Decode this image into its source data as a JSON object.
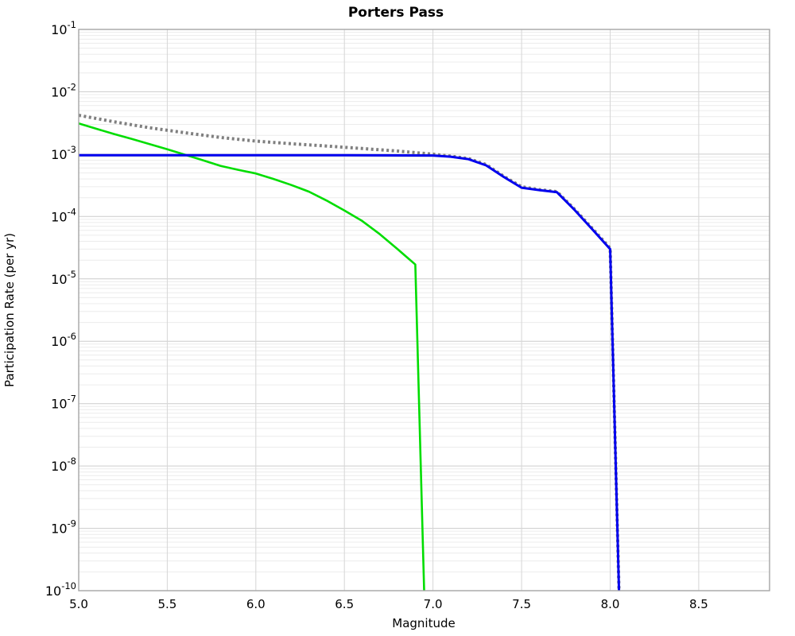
{
  "chart_data": {
    "type": "line",
    "title": "Porters Pass",
    "xlabel": "Magnitude",
    "ylabel": "Participation Rate (per yr)",
    "xlim": [
      5.0,
      8.9
    ],
    "y_scale": "log",
    "ylim_exp": [
      -10,
      -1
    ],
    "x_ticks": [
      5.0,
      5.5,
      6.0,
      6.5,
      7.0,
      7.5,
      8.0,
      8.5
    ],
    "x_tick_labels": [
      "5.0",
      "5.5",
      "6.0",
      "6.5",
      "7.0",
      "7.5",
      "8.0",
      "8.5"
    ],
    "y_tick_exponents": [
      -1,
      -2,
      -3,
      -4,
      -5,
      -6,
      -7,
      -8,
      -9,
      -10
    ],
    "grid": "major and log-minor horizontal, major vertical",
    "legend": "none",
    "background_color": "#ffffff",
    "series": [
      {
        "name": "green-curve",
        "color": "#00dd00",
        "style": "solid",
        "width": 2.6,
        "points": [
          [
            5.0,
            0.0031
          ],
          [
            5.1,
            0.00255
          ],
          [
            5.2,
            0.0021
          ],
          [
            5.3,
            0.00175
          ],
          [
            5.4,
            0.00145
          ],
          [
            5.5,
            0.0012
          ],
          [
            5.6,
            0.00098
          ],
          [
            5.7,
            0.0008
          ],
          [
            5.8,
            0.00065
          ],
          [
            5.9,
            0.00056
          ],
          [
            6.0,
            0.00049
          ],
          [
            6.1,
            0.0004
          ],
          [
            6.2,
            0.00032
          ],
          [
            6.3,
            0.00025
          ],
          [
            6.4,
            0.00018
          ],
          [
            6.5,
            0.000125
          ],
          [
            6.6,
            8.5e-05
          ],
          [
            6.7,
            5.2e-05
          ],
          [
            6.8,
            3e-05
          ],
          [
            6.9,
            1.7e-05
          ],
          [
            6.95,
            1e-10
          ]
        ]
      },
      {
        "name": "gray-dotted-total-curve",
        "color": "#7f7f7f",
        "style": "dotted",
        "width": 4,
        "points": [
          [
            5.0,
            0.0042
          ],
          [
            5.2,
            0.0033
          ],
          [
            5.4,
            0.00265
          ],
          [
            5.6,
            0.0022
          ],
          [
            5.8,
            0.00185
          ],
          [
            6.0,
            0.00162
          ],
          [
            6.2,
            0.00147
          ],
          [
            6.4,
            0.00135
          ],
          [
            6.6,
            0.00123
          ],
          [
            6.8,
            0.00112
          ],
          [
            7.0,
            0.001
          ],
          [
            7.1,
            0.00093
          ],
          [
            7.2,
            0.00085
          ],
          [
            7.3,
            0.00068
          ],
          [
            7.4,
            0.00044
          ],
          [
            7.5,
            0.0003
          ],
          [
            7.6,
            0.00027
          ],
          [
            7.7,
            0.00025
          ],
          [
            7.8,
            0.00013
          ],
          [
            7.9,
            6.4e-05
          ],
          [
            8.0,
            3.1e-05
          ],
          [
            8.05,
            1e-10
          ]
        ]
      },
      {
        "name": "blue-curve",
        "color": "#0000ee",
        "style": "solid",
        "width": 3,
        "points": [
          [
            5.0,
            0.00096
          ],
          [
            6.0,
            0.00096
          ],
          [
            6.5,
            0.00096
          ],
          [
            7.0,
            0.00095
          ],
          [
            7.1,
            0.00091
          ],
          [
            7.2,
            0.00083
          ],
          [
            7.3,
            0.00066
          ],
          [
            7.4,
            0.00043
          ],
          [
            7.5,
            0.00029
          ],
          [
            7.6,
            0.000265
          ],
          [
            7.7,
            0.000245
          ],
          [
            7.8,
            0.000127
          ],
          [
            7.9,
            6.2e-05
          ],
          [
            8.0,
            3e-05
          ],
          [
            8.05,
            1e-10
          ]
        ]
      }
    ]
  }
}
